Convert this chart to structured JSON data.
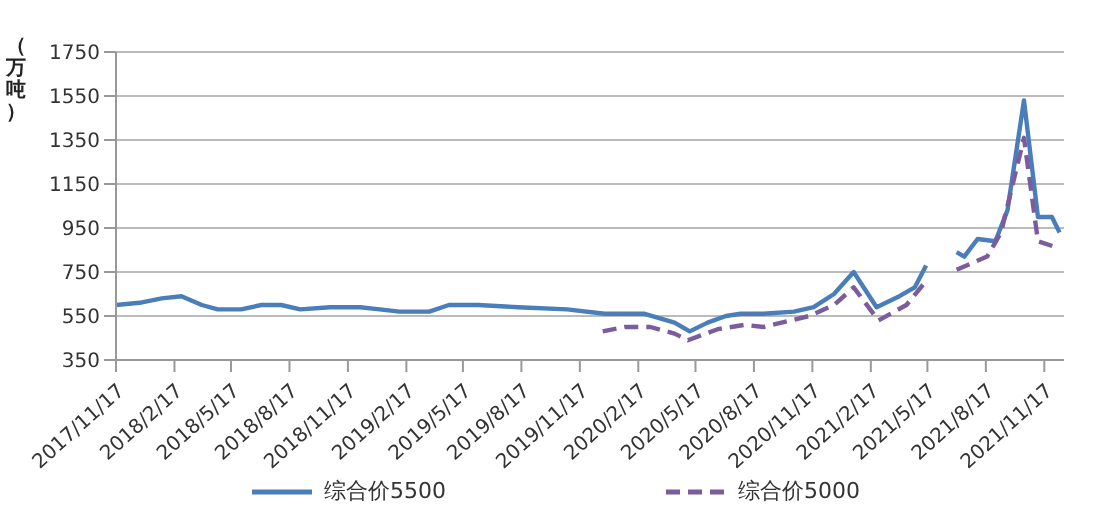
{
  "chart_data": {
    "type": "line",
    "ylabel": "（万吨）",
    "xlim": [
      "2017-11-17",
      "2021-12-18"
    ],
    "xticks": [
      {
        "value": "2017-11-17",
        "label": "2017/11/17"
      },
      {
        "value": "2018-02-17",
        "label": "2018/2/17"
      },
      {
        "value": "2018-05-17",
        "label": "2018/5/17"
      },
      {
        "value": "2018-08-17",
        "label": "2018/8/17"
      },
      {
        "value": "2018-11-17",
        "label": "2018/11/17"
      },
      {
        "value": "2019-02-17",
        "label": "2019/2/17"
      },
      {
        "value": "2019-05-17",
        "label": "2019/5/17"
      },
      {
        "value": "2019-08-17",
        "label": "2019/8/17"
      },
      {
        "value": "2019-11-17",
        "label": "2019/11/17"
      },
      {
        "value": "2020-02-17",
        "label": "2020/2/17"
      },
      {
        "value": "2020-05-17",
        "label": "2020/5/17"
      },
      {
        "value": "2020-08-17",
        "label": "2020/8/17"
      },
      {
        "value": "2020-11-17",
        "label": "2020/11/17"
      },
      {
        "value": "2021-02-17",
        "label": "2021/2/17"
      },
      {
        "value": "2021-05-17",
        "label": "2021/5/17"
      },
      {
        "value": "2021-08-17",
        "label": "2021/8/17"
      },
      {
        "value": "2021-11-17",
        "label": "2021/11/17"
      }
    ],
    "ylim": [
      350,
      1750
    ],
    "yticks": [
      350,
      550,
      750,
      950,
      1150,
      1350,
      1550,
      1750
    ],
    "grid": "y",
    "legend": "bottom",
    "series": [
      {
        "name": "综合价5500",
        "color": "#4a7ebb",
        "line_style": "solid",
        "x": [
          "2017-11-17",
          "2017-12-24",
          "2018-01-28",
          "2018-02-28",
          "2018-04-01",
          "2018-04-26",
          "2018-06-02",
          "2018-07-04",
          "2018-08-04",
          "2018-09-03",
          "2018-10-20",
          "2018-12-06",
          "2019-01-06",
          "2019-02-06",
          "2019-03-25",
          "2019-04-25",
          "2019-06-10",
          "2019-08-12",
          "2019-10-28",
          "2019-12-26",
          "2020-02-27",
          "2020-04-14",
          "2020-05-08",
          "2020-06-05",
          "2020-07-04",
          "2020-07-27",
          "2020-09-01",
          "2020-10-19",
          "2020-11-19",
          "2020-12-21",
          "2021-01-21",
          "2021-02-26",
          "2021-04-03",
          "2021-04-27",
          "2021-05-15",
          "2021-06-20",
          "2021-07-02",
          "2021-07-14",
          "2021-08-04",
          "2021-09-01",
          "2021-09-20",
          "2021-10-16",
          "2021-11-07",
          "2021-11-29",
          "2021-12-11"
        ],
        "values": [
          600,
          610,
          630,
          640,
          600,
          580,
          580,
          600,
          600,
          580,
          590,
          590,
          580,
          570,
          570,
          600,
          600,
          590,
          580,
          560,
          560,
          520,
          480,
          520,
          550,
          560,
          560,
          570,
          590,
          650,
          750,
          590,
          640,
          680,
          780,
          null,
          840,
          820,
          900,
          890,
          1030,
          1530,
          1000,
          1000,
          930
        ]
      },
      {
        "name": "综合价5000",
        "color": "#7b5c9c",
        "line_style": "dashed",
        "x": [
          "2019-12-23",
          "2020-01-27",
          "2020-03-07",
          "2020-04-14",
          "2020-05-05",
          "2020-06-21",
          "2020-08-03",
          "2020-09-01",
          "2020-11-12",
          "2020-12-21",
          "2021-01-21",
          "2021-03-01",
          "2021-04-14",
          "2021-05-18",
          "2021-06-20",
          "2021-07-02",
          "2021-08-19",
          "2021-09-10",
          "2021-10-16",
          "2021-11-07",
          "2021-12-08"
        ],
        "values": [
          480,
          500,
          500,
          470,
          440,
          490,
          510,
          500,
          550,
          600,
          680,
          530,
          600,
          720,
          null,
          760,
          820,
          930,
          1360,
          890,
          860
        ]
      }
    ]
  }
}
